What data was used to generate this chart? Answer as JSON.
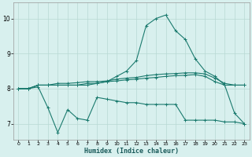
{
  "title": "",
  "xlabel": "Humidex (Indice chaleur)",
  "ylabel": "",
  "background_color": "#d8f0ee",
  "grid_color": "#b8d8d4",
  "line_color": "#1a7a6e",
  "xlim": [
    -0.5,
    23.5
  ],
  "ylim": [
    6.55,
    10.45
  ],
  "yticks": [
    7,
    8,
    9,
    10
  ],
  "xticks": [
    0,
    1,
    2,
    3,
    4,
    5,
    6,
    7,
    8,
    9,
    10,
    11,
    12,
    13,
    14,
    15,
    16,
    17,
    18,
    19,
    20,
    21,
    22,
    23
  ],
  "series": [
    {
      "x": [
        0,
        1,
        2,
        3,
        4,
        5,
        6,
        7,
        8,
        9,
        10,
        11,
        12,
        13,
        14,
        15,
        16,
        17,
        18,
        19,
        20,
        21,
        22,
        23
      ],
      "y": [
        8.0,
        8.0,
        8.05,
        7.45,
        6.75,
        7.4,
        7.15,
        7.1,
        7.75,
        7.7,
        7.65,
        7.6,
        7.6,
        7.55,
        7.55,
        7.55,
        7.55,
        7.1,
        7.1,
        7.1,
        7.1,
        7.05,
        7.05,
        7.0
      ]
    },
    {
      "x": [
        0,
        1,
        2,
        3,
        4,
        5,
        6,
        7,
        8,
        9,
        10,
        11,
        12,
        13,
        14,
        15,
        16,
        17,
        18,
        19,
        20,
        21,
        22,
        23
      ],
      "y": [
        8.0,
        8.0,
        8.1,
        8.1,
        8.1,
        8.1,
        8.1,
        8.15,
        8.15,
        8.2,
        8.22,
        8.25,
        8.27,
        8.3,
        8.32,
        8.35,
        8.37,
        8.38,
        8.4,
        8.35,
        8.2,
        8.1,
        8.1,
        8.1
      ]
    },
    {
      "x": [
        0,
        1,
        2,
        3,
        4,
        5,
        6,
        7,
        8,
        9,
        10,
        11,
        12,
        13,
        14,
        15,
        16,
        17,
        18,
        19,
        20,
        21,
        22,
        23
      ],
      "y": [
        8.0,
        8.0,
        8.1,
        8.1,
        8.15,
        8.15,
        8.17,
        8.2,
        8.2,
        8.22,
        8.27,
        8.3,
        8.32,
        8.37,
        8.4,
        8.42,
        8.43,
        8.45,
        8.45,
        8.42,
        8.3,
        8.15,
        8.1,
        8.1
      ]
    },
    {
      "x": [
        0,
        1,
        2,
        3,
        4,
        5,
        6,
        7,
        8,
        9,
        10,
        11,
        12,
        13,
        14,
        15,
        16,
        17,
        18,
        19,
        20,
        21,
        22,
        23
      ],
      "y": [
        8.0,
        8.0,
        8.1,
        8.1,
        8.1,
        8.1,
        8.1,
        8.1,
        8.15,
        8.2,
        8.35,
        8.5,
        8.8,
        9.8,
        10.0,
        10.1,
        9.65,
        9.4,
        8.85,
        8.5,
        8.35,
        8.1,
        7.3,
        7.0
      ]
    }
  ]
}
